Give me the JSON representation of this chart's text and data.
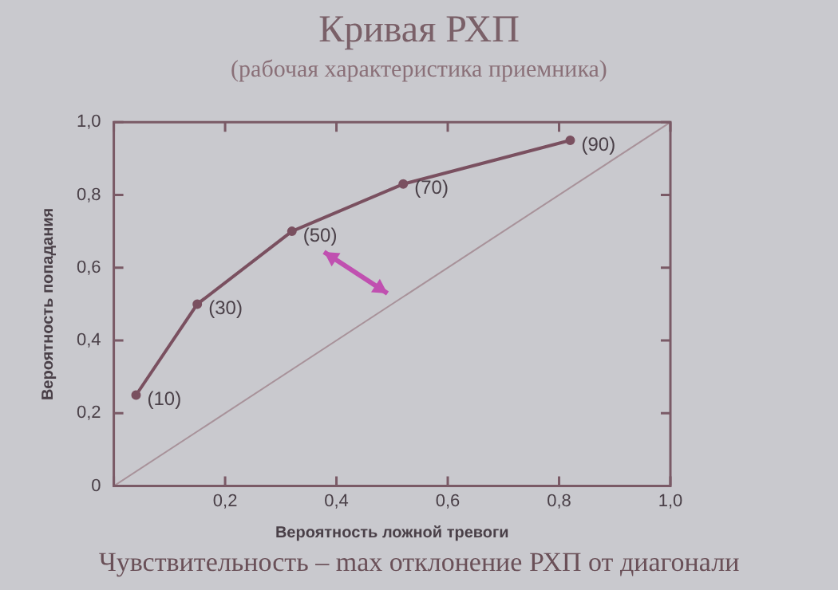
{
  "chart_data": {
    "type": "line",
    "title": "Кривая РХП",
    "subtitle": "(рабочая характеристика приемника)",
    "xlabel": "Вероятность ложной тревоги",
    "ylabel": "Вероятность попадания",
    "series": [
      {
        "color": "#7a5060",
        "x": [
          0.04,
          0.15,
          0.32,
          0.52,
          0.82
        ],
        "values": [
          0.25,
          0.5,
          0.7,
          0.83,
          0.95
        ],
        "marker": "circle"
      },
      {
        "color": "#a8929a",
        "x": [
          0,
          1
        ],
        "values": [
          0,
          1
        ],
        "marker": "none"
      }
    ],
    "annotations": [
      {
        "text": "(10)",
        "x": 0.04,
        "y": 0.25
      },
      {
        "text": "(30)",
        "x": 0.15,
        "y": 0.5
      },
      {
        "text": "(50)",
        "x": 0.32,
        "y": 0.7
      },
      {
        "text": "(70)",
        "x": 0.52,
        "y": 0.83
      },
      {
        "text": "(90)",
        "x": 0.82,
        "y": 0.95
      },
      "Чувствительность – max отклонение РХП от диагонали"
    ],
    "xlim": [
      0,
      1
    ],
    "ylim": [
      0,
      1
    ],
    "xticks": [
      {
        "value": 0,
        "label": null
      },
      {
        "value": 0.2,
        "label": "0,2"
      },
      {
        "value": 0.4,
        "label": "0,4"
      },
      {
        "value": 0.6,
        "label": "0,6"
      },
      {
        "value": 0.8,
        "label": "0,8"
      },
      {
        "value": 1.0,
        "label": "1,0"
      }
    ],
    "yticks": [
      0,
      {
        "value": 0.2,
        "label": "0,2"
      },
      {
        "value": 0.4,
        "label": "0,4"
      },
      {
        "value": 0.6,
        "label": "0,6"
      },
      {
        "value": 0.8,
        "label": "0,8"
      },
      {
        "value": 1.0,
        "label": "1,0"
      }
    ],
    "grid": false,
    "legend": false
  }
}
